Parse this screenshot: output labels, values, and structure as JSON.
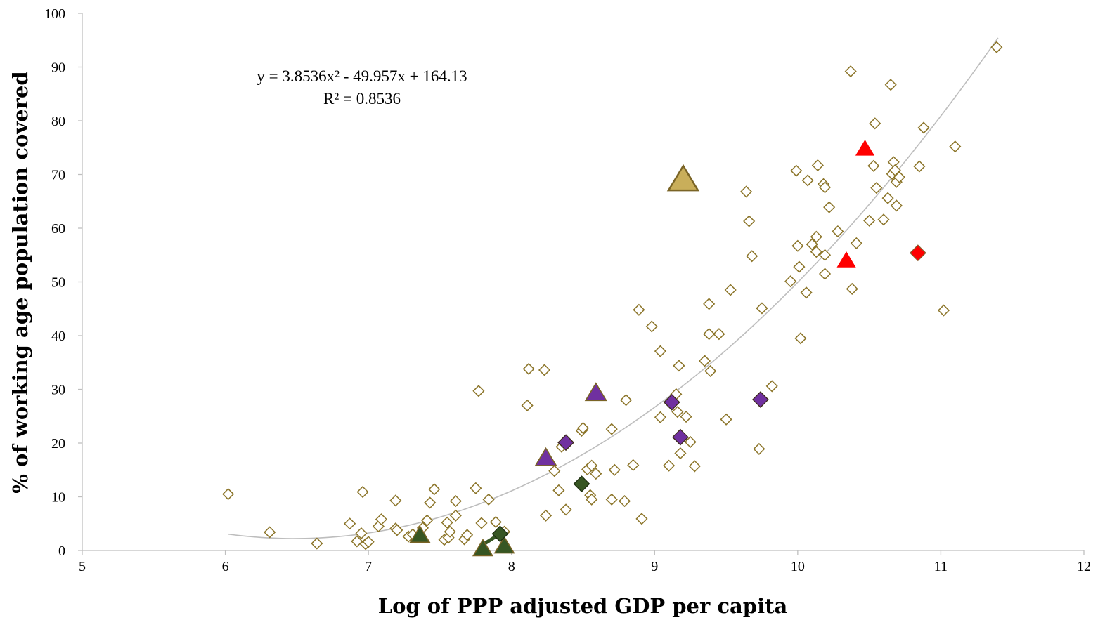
{
  "chart_data": {
    "type": "scatter",
    "title": "",
    "xlabel": "Log of PPP adjusted GDP per capita",
    "ylabel": "% of working age population covered",
    "xlim": [
      5,
      12
    ],
    "ylim": [
      0,
      100
    ],
    "x_ticks": [
      "5",
      "6",
      "7",
      "8",
      "9",
      "10",
      "11",
      "12"
    ],
    "y_ticks": [
      "0",
      "10",
      "20",
      "30",
      "40",
      "50",
      "60",
      "70",
      "80",
      "90",
      "100"
    ],
    "grid": false,
    "legend": "none",
    "trendline": {
      "type": "polynomial",
      "coefficients": [
        3.8536,
        -49.957,
        164.13
      ],
      "x_range": [
        6.02,
        11.4
      ],
      "color": "#bdbdbd",
      "equation_line1": "y = 3.8536x² - 49.957x + 164.13",
      "equation_line2": "R² = 0.8536"
    },
    "colors": {
      "open": "#8b7428",
      "gold": "#c9ae5a",
      "purple": "#7030a0",
      "green": "#375623",
      "red": "#ff0000",
      "axis": "#bfbfbf"
    },
    "series": [
      {
        "marker": "open-diamond",
        "points": [
          [
            6.02,
            10.5
          ],
          [
            6.31,
            3.4
          ],
          [
            6.64,
            1.3
          ],
          [
            6.87,
            5.0
          ],
          [
            6.92,
            1.7
          ],
          [
            6.95,
            3.2
          ],
          [
            6.96,
            10.9
          ],
          [
            6.98,
            1.2
          ],
          [
            7.0,
            1.6
          ],
          [
            7.07,
            4.5
          ],
          [
            7.09,
            5.8
          ],
          [
            7.19,
            4.1
          ],
          [
            7.19,
            9.3
          ],
          [
            7.2,
            3.8
          ],
          [
            7.28,
            2.6
          ],
          [
            7.31,
            3.0
          ],
          [
            7.38,
            4.2
          ],
          [
            7.41,
            5.6
          ],
          [
            7.43,
            8.9
          ],
          [
            7.46,
            11.4
          ],
          [
            7.53,
            2.0
          ],
          [
            7.55,
            5.2
          ],
          [
            7.56,
            2.4
          ],
          [
            7.57,
            3.5
          ],
          [
            7.61,
            6.5
          ],
          [
            7.61,
            9.2
          ],
          [
            7.67,
            2.1
          ],
          [
            7.69,
            2.9
          ],
          [
            7.75,
            11.6
          ],
          [
            7.77,
            29.7
          ],
          [
            7.79,
            5.1
          ],
          [
            7.84,
            9.5
          ],
          [
            7.89,
            5.3
          ],
          [
            7.95,
            3.5
          ],
          [
            8.11,
            27.0
          ],
          [
            8.12,
            33.8
          ],
          [
            8.24,
            6.5
          ],
          [
            8.23,
            33.6
          ],
          [
            8.3,
            14.8
          ],
          [
            8.33,
            11.2
          ],
          [
            8.35,
            19.3
          ],
          [
            8.38,
            7.6
          ],
          [
            8.49,
            22.3
          ],
          [
            8.5,
            22.8
          ],
          [
            8.53,
            15.1
          ],
          [
            8.55,
            10.3
          ],
          [
            8.56,
            9.5
          ],
          [
            8.56,
            15.8
          ],
          [
            8.59,
            14.3
          ],
          [
            8.7,
            22.6
          ],
          [
            8.7,
            9.5
          ],
          [
            8.72,
            15.0
          ],
          [
            8.79,
            9.2
          ],
          [
            8.8,
            28.0
          ],
          [
            8.85,
            15.9
          ],
          [
            8.89,
            44.8
          ],
          [
            8.91,
            5.9
          ],
          [
            8.98,
            41.7
          ],
          [
            9.04,
            24.8
          ],
          [
            9.04,
            37.1
          ],
          [
            9.1,
            15.8
          ],
          [
            9.15,
            29.1
          ],
          [
            9.16,
            25.8
          ],
          [
            9.17,
            34.4
          ],
          [
            9.18,
            18.1
          ],
          [
            9.22,
            24.9
          ],
          [
            9.25,
            20.2
          ],
          [
            9.28,
            15.7
          ],
          [
            9.35,
            35.3
          ],
          [
            9.38,
            45.9
          ],
          [
            9.38,
            40.3
          ],
          [
            9.39,
            33.4
          ],
          [
            9.45,
            40.3
          ],
          [
            9.5,
            24.4
          ],
          [
            9.53,
            48.5
          ],
          [
            9.64,
            66.8
          ],
          [
            9.66,
            61.3
          ],
          [
            9.68,
            54.8
          ],
          [
            9.73,
            18.9
          ],
          [
            9.75,
            45.1
          ],
          [
            9.82,
            30.6
          ],
          [
            9.95,
            50.1
          ],
          [
            9.99,
            70.7
          ],
          [
            10.0,
            56.7
          ],
          [
            10.01,
            52.8
          ],
          [
            10.02,
            39.5
          ],
          [
            10.06,
            48.0
          ],
          [
            10.07,
            68.9
          ],
          [
            10.1,
            57.0
          ],
          [
            10.13,
            58.4
          ],
          [
            10.14,
            71.7
          ],
          [
            10.13,
            55.6
          ],
          [
            10.18,
            68.2
          ],
          [
            10.19,
            67.6
          ],
          [
            10.19,
            51.5
          ],
          [
            10.19,
            55.0
          ],
          [
            10.22,
            63.9
          ],
          [
            10.28,
            59.4
          ],
          [
            10.37,
            89.2
          ],
          [
            10.38,
            48.7
          ],
          [
            10.41,
            57.2
          ],
          [
            10.5,
            61.4
          ],
          [
            10.53,
            71.6
          ],
          [
            10.54,
            79.5
          ],
          [
            10.55,
            67.5
          ],
          [
            10.6,
            61.6
          ],
          [
            10.63,
            65.6
          ],
          [
            10.65,
            86.7
          ],
          [
            10.66,
            70.1
          ],
          [
            10.67,
            72.3
          ],
          [
            10.68,
            70.8
          ],
          [
            10.69,
            68.6
          ],
          [
            10.69,
            64.2
          ],
          [
            10.71,
            69.5
          ],
          [
            10.85,
            71.5
          ],
          [
            10.88,
            78.7
          ],
          [
            11.02,
            44.7
          ],
          [
            11.1,
            75.2
          ],
          [
            11.39,
            93.7
          ]
        ]
      },
      {
        "marker": "gold-triangle",
        "points": [
          [
            9.2,
            69.0
          ]
        ]
      },
      {
        "marker": "purple-triangle",
        "points": [
          [
            8.24,
            17.2
          ],
          [
            8.59,
            29.3
          ]
        ]
      },
      {
        "marker": "purple-diamond",
        "points": [
          [
            8.38,
            20.1
          ],
          [
            9.12,
            27.6
          ],
          [
            9.18,
            21.1
          ],
          [
            9.74,
            28.1
          ]
        ]
      },
      {
        "marker": "green-triangle",
        "points": [
          [
            7.36,
            2.8
          ],
          [
            7.8,
            0.3
          ],
          [
            7.95,
            0.8
          ]
        ]
      },
      {
        "marker": "green-diamond",
        "points": [
          [
            7.92,
            3.1
          ],
          [
            8.49,
            12.4
          ]
        ]
      },
      {
        "marker": "red-triangle",
        "points": [
          [
            10.47,
            74.8
          ],
          [
            10.34,
            54.0
          ]
        ]
      },
      {
        "marker": "red-diamond",
        "points": [
          [
            10.84,
            55.4
          ]
        ]
      }
    ],
    "connector": {
      "from": [
        7.8,
        0.3
      ],
      "to": [
        7.92,
        3.1
      ]
    }
  }
}
